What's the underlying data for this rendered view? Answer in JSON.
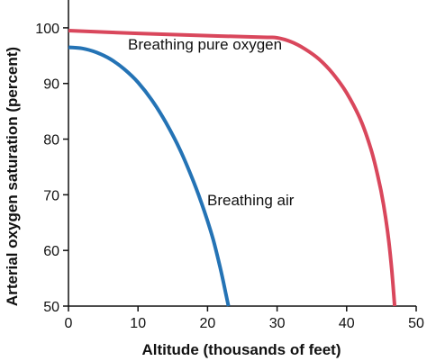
{
  "chart_data": {
    "type": "line",
    "title": "",
    "xlabel": "Altitude (thousands of feet)",
    "ylabel": "Arterial oxygen saturation (percent)",
    "xlim": [
      0,
      50
    ],
    "ylim": [
      50,
      105
    ],
    "xticks": [
      0,
      10,
      20,
      30,
      40,
      50
    ],
    "yticks": [
      50,
      60,
      70,
      80,
      90,
      100
    ],
    "grid": false,
    "series": [
      {
        "name": "Breathing pure oxygen",
        "color": "#d9475c",
        "points": [
          [
            0,
            99.5
          ],
          [
            10,
            99.0
          ],
          [
            20,
            98.6
          ],
          [
            28,
            98.3
          ],
          [
            30,
            98.2
          ],
          [
            32,
            97.5
          ],
          [
            34,
            96.2
          ],
          [
            36,
            94.4
          ],
          [
            38,
            91.8
          ],
          [
            40,
            88.3
          ],
          [
            42,
            83.5
          ],
          [
            43.5,
            78.2
          ],
          [
            44.5,
            73.3
          ],
          [
            45.3,
            68.3
          ],
          [
            46,
            62.3
          ],
          [
            46.5,
            56.3
          ],
          [
            46.9,
            50
          ]
        ]
      },
      {
        "name": "Breathing air",
        "color": "#2473b5",
        "points": [
          [
            0,
            96.5
          ],
          [
            2,
            96.3
          ],
          [
            4,
            95.6
          ],
          [
            6,
            94.4
          ],
          [
            8,
            92.6
          ],
          [
            10,
            90.2
          ],
          [
            12,
            87.0
          ],
          [
            14,
            83.0
          ],
          [
            16,
            78.2
          ],
          [
            18,
            72.3
          ],
          [
            19.5,
            67.2
          ],
          [
            20.8,
            62.0
          ],
          [
            21.8,
            57.0
          ],
          [
            22.5,
            53.0
          ],
          [
            23,
            50
          ]
        ]
      }
    ]
  }
}
